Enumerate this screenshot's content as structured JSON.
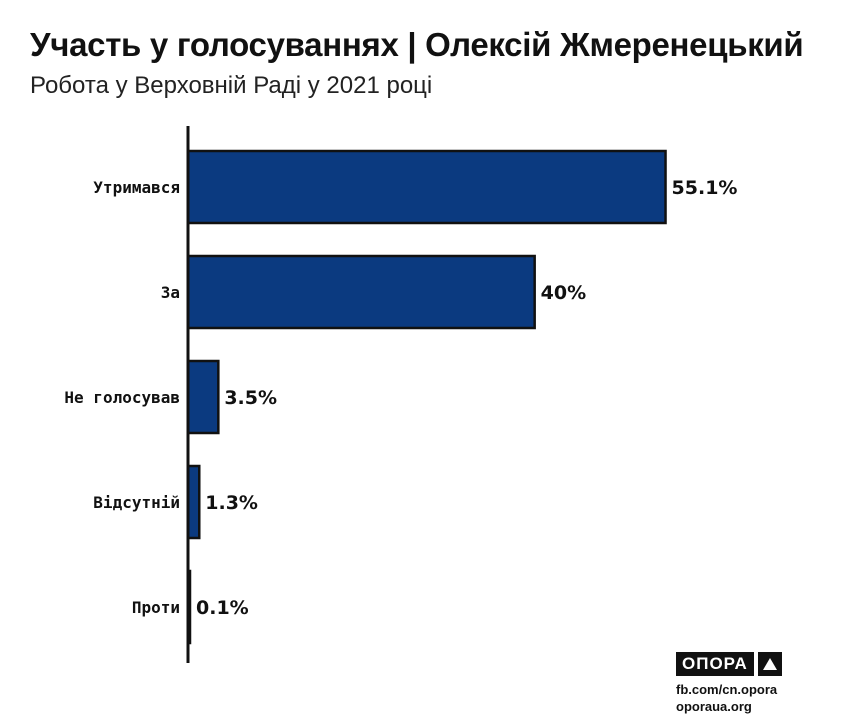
{
  "header": {
    "title": "Участь у голосуваннях | Олексій Жмеренецький",
    "subtitle": "Робота у Верховній Раді у 2021 році"
  },
  "chart_data": {
    "type": "bar",
    "orientation": "horizontal",
    "categories": [
      "Утримався",
      "За",
      "Не голосував",
      "Відсутній",
      "Проти"
    ],
    "values": [
      55.1,
      40,
      3.5,
      1.3,
      0.1
    ],
    "value_labels": [
      "55.1%",
      "40%",
      "3.5%",
      "1.3%",
      "0.1%"
    ],
    "bar_color": "#0b3a80",
    "xlim": [
      0,
      60
    ],
    "grid": false,
    "legend": "none"
  },
  "footer": {
    "logo_text": "ОПОРА",
    "logo_icon": "triangle-icon",
    "links": [
      "fb.com/cn.opora",
      "oporaua.org"
    ]
  }
}
